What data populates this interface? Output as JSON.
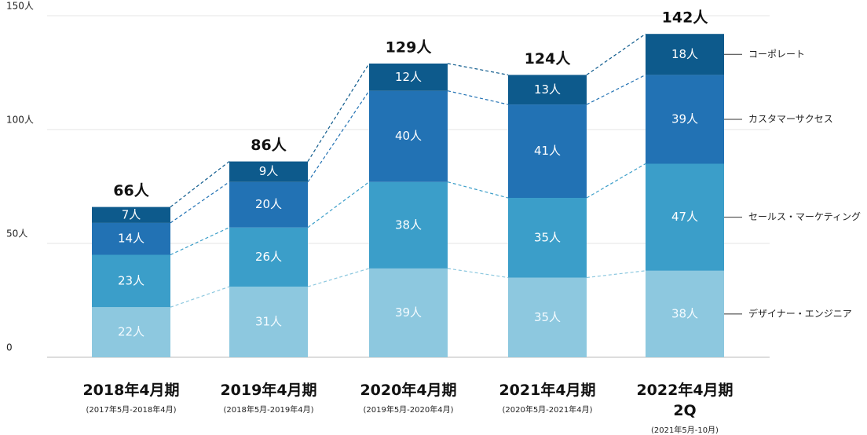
{
  "chart_data": {
    "type": "stacked_bar",
    "categories": [
      "2018年4月期",
      "2019年4月期",
      "2020年4月期",
      "2021年4月期",
      "2022年4月期\n2Q"
    ],
    "category_sublabels": [
      "(2017年5月-2018年4月)",
      "(2018年5月-2019年4月)",
      "(2019年5月-2020年4月)",
      "(2020年5月-2021年4月)",
      "(2021年5月-10月)"
    ],
    "series": [
      {
        "name": "デザイナー・エンジニア",
        "color": "#8dc8df",
        "values": [
          22,
          31,
          39,
          35,
          38
        ],
        "value_labels": [
          "22人",
          "31人",
          "39人",
          "35人",
          "38人"
        ]
      },
      {
        "name": "セールス・マーケティング",
        "color": "#3b9ec9",
        "values": [
          23,
          26,
          38,
          35,
          47
        ],
        "value_labels": [
          "23人",
          "26人",
          "38人",
          "35人",
          "47人"
        ]
      },
      {
        "name": "カスタマーサクセス",
        "color": "#2272b4",
        "values": [
          14,
          20,
          40,
          41,
          39
        ],
        "value_labels": [
          "14人",
          "20人",
          "40人",
          "41人",
          "39人"
        ]
      },
      {
        "name": "コーポレート",
        "color": "#0d5a8c",
        "values": [
          7,
          9,
          12,
          13,
          18
        ],
        "value_labels": [
          "7人",
          "9人",
          "12人",
          "13人",
          "18人"
        ]
      }
    ],
    "totals": [
      66,
      86,
      129,
      124,
      142
    ],
    "total_labels": [
      "66人",
      "86人",
      "129人",
      "124人",
      "142人"
    ],
    "ylim": [
      0,
      150
    ],
    "yticks": [
      0,
      {
        "value": 50,
        "label": "50人"
      },
      {
        "value": 100,
        "label": "100人"
      },
      {
        "value": 150,
        "label": "150人"
      }
    ],
    "grid": true
  }
}
